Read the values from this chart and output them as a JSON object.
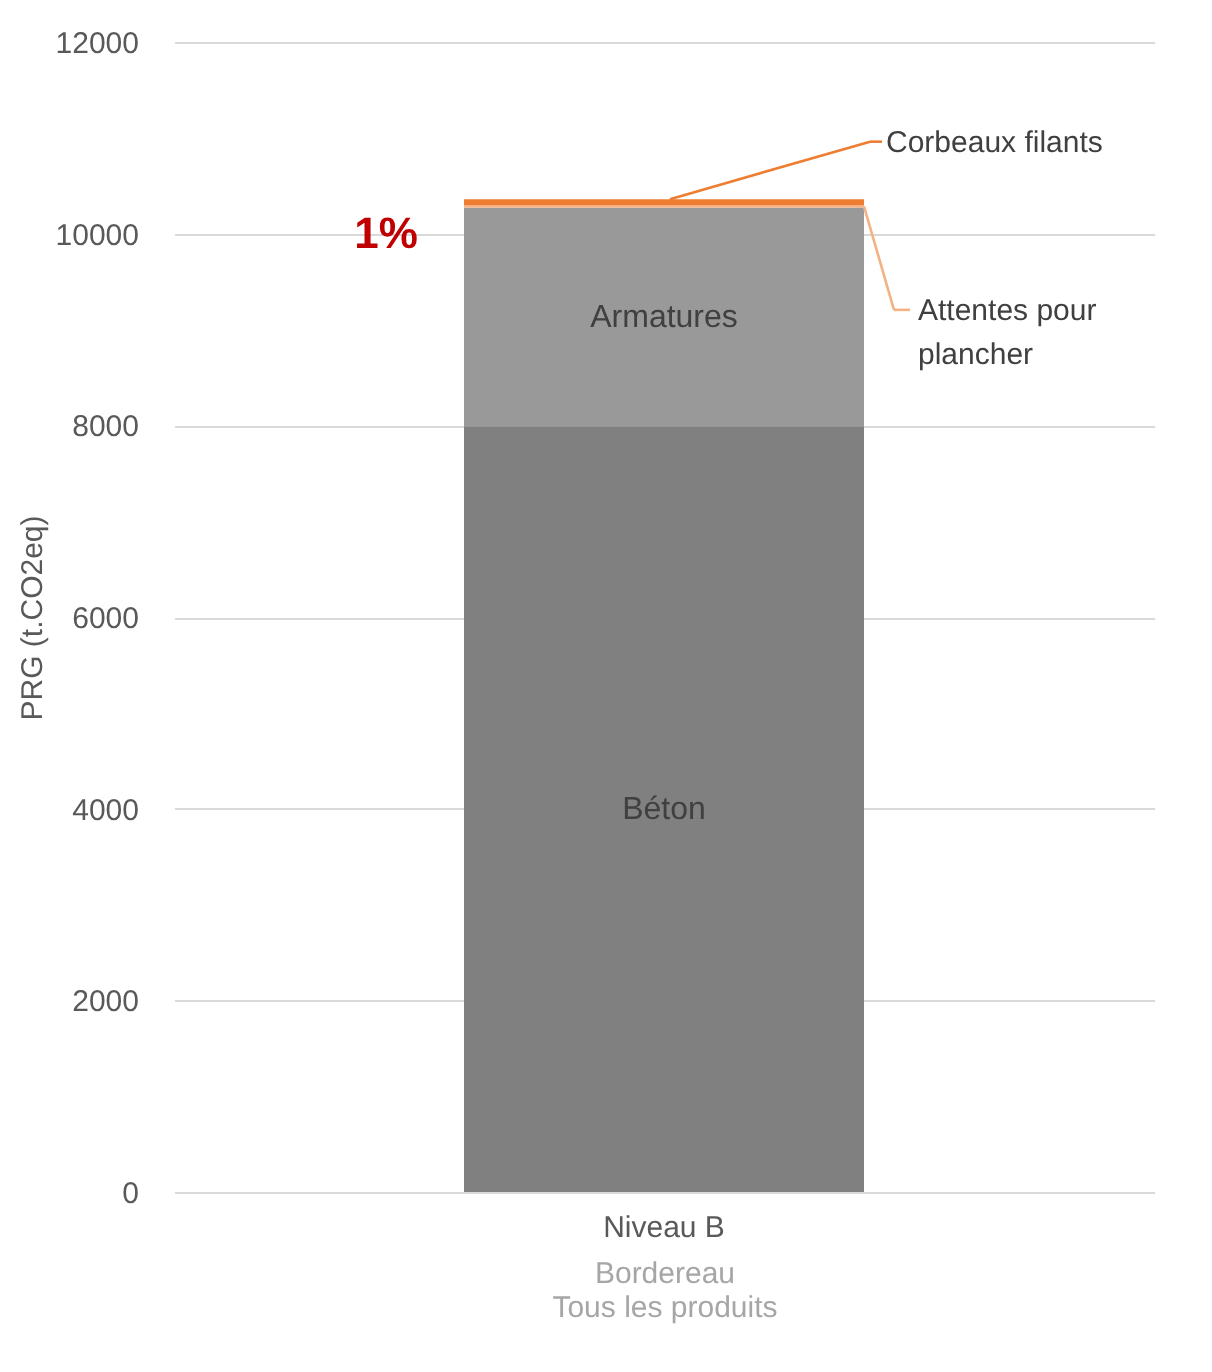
{
  "chart_data": {
    "type": "bar",
    "stacked": true,
    "categories": [
      "Niveau B"
    ],
    "xlabel": "Bordereau\nTous les produits",
    "ylabel": "PRG (t.CO2eq)",
    "series": [
      {
        "name": "Béton",
        "color": "#808080",
        "values": [
          7990
        ]
      },
      {
        "name": "Armatures",
        "color": "#999999",
        "values": [
          2280
        ]
      },
      {
        "name": "Attentes pour\nplancher",
        "color": "#f4b183",
        "values": [
          30
        ]
      },
      {
        "name": "Corbeaux filants",
        "color": "#ed7d31",
        "values": [
          60
        ]
      }
    ],
    "ylim": [
      0,
      12000
    ],
    "yticks": [
      0,
      2000,
      4000,
      6000,
      8000,
      10000,
      12000
    ],
    "grid": "y",
    "legend": "right",
    "annotations": [
      "1%"
    ]
  }
}
